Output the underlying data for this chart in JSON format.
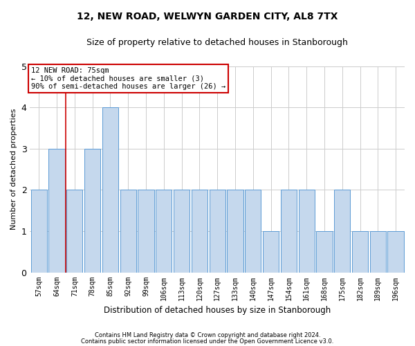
{
  "title": "12, NEW ROAD, WELWYN GARDEN CITY, AL8 7TX",
  "subtitle": "Size of property relative to detached houses in Stanborough",
  "xlabel": "Distribution of detached houses by size in Stanborough",
  "ylabel": "Number of detached properties",
  "categories": [
    "57sqm",
    "64sqm",
    "71sqm",
    "78sqm",
    "85sqm",
    "92sqm",
    "99sqm",
    "106sqm",
    "113sqm",
    "120sqm",
    "127sqm",
    "133sqm",
    "140sqm",
    "147sqm",
    "154sqm",
    "161sqm",
    "168sqm",
    "175sqm",
    "182sqm",
    "189sqm",
    "196sqm"
  ],
  "values": [
    2,
    3,
    2,
    3,
    4,
    2,
    2,
    2,
    2,
    2,
    2,
    2,
    2,
    1,
    2,
    2,
    1,
    2,
    1,
    1,
    1
  ],
  "bar_color": "#c5d8ed",
  "bar_edge_color": "#5b9bd5",
  "redline_x": 1.5,
  "annotation_text": "12 NEW ROAD: 75sqm\n← 10% of detached houses are smaller (3)\n90% of semi-detached houses are larger (26) →",
  "annotation_box_color": "#ffffff",
  "annotation_box_edge": "#cc0000",
  "footnote1": "Contains HM Land Registry data © Crown copyright and database right 2024.",
  "footnote2": "Contains public sector information licensed under the Open Government Licence v3.0.",
  "ylim": [
    0,
    5
  ],
  "background_color": "#ffffff",
  "grid_color": "#cccccc"
}
